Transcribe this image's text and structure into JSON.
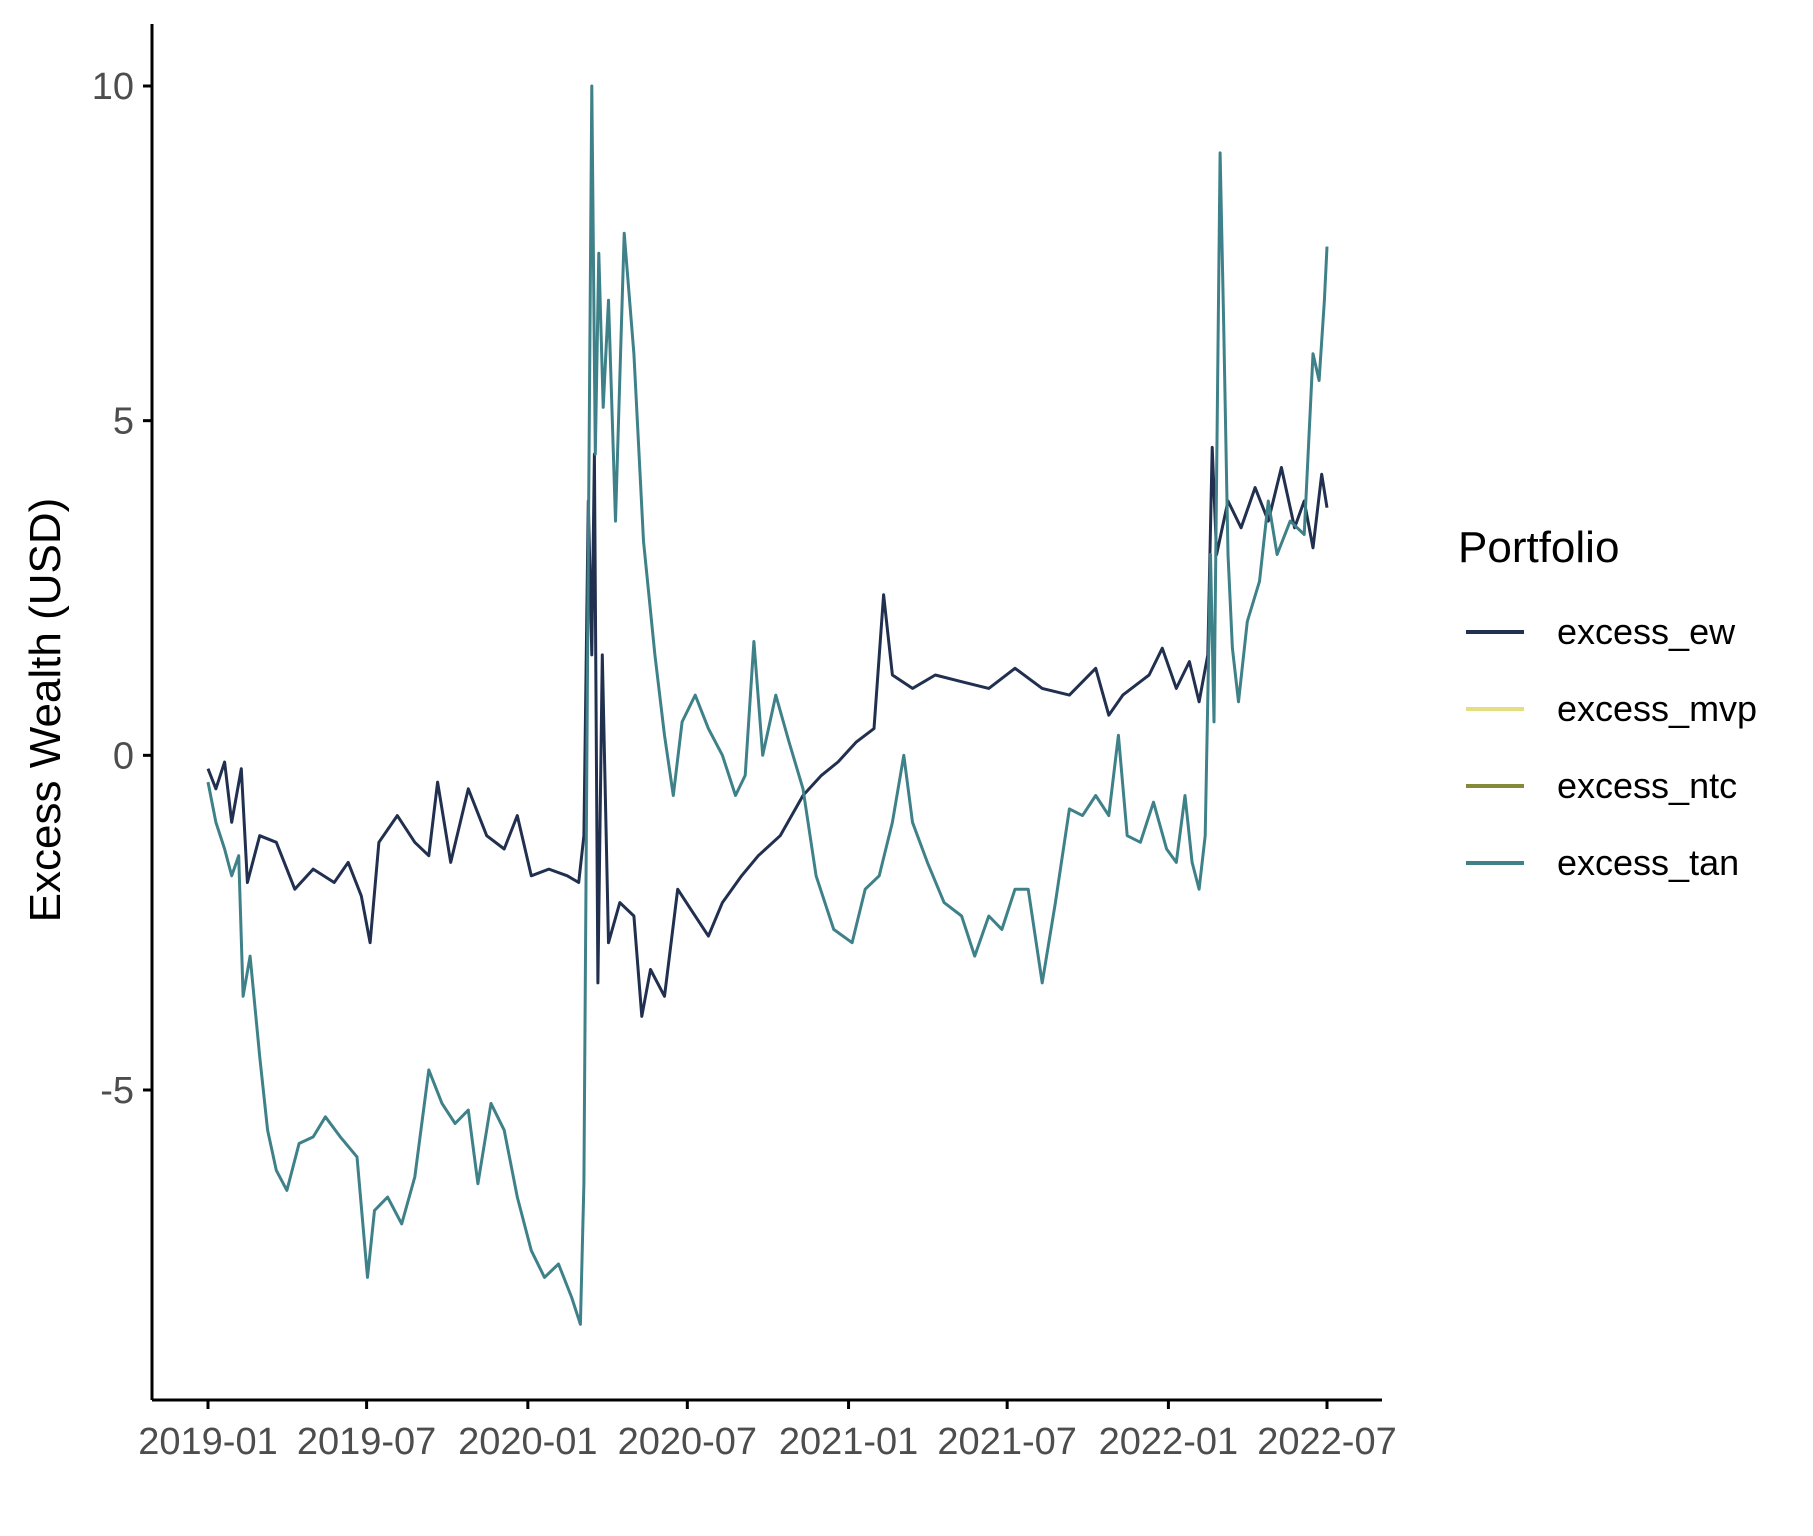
{
  "chart_data": {
    "type": "line",
    "title": "",
    "xlabel": "",
    "ylabel": "Excess Wealth (USD)",
    "x_type": "date",
    "xlim": [
      "2019-01-01",
      "2022-07-01"
    ],
    "ylim": [
      -9,
      11
    ],
    "x_ticks": [
      "2019-01",
      "2019-07",
      "2020-01",
      "2020-07",
      "2021-01",
      "2021-07",
      "2022-01",
      "2022-07"
    ],
    "y_ticks": [
      -5,
      0,
      5,
      10
    ],
    "y_tick_labels": [
      "-5",
      "0",
      "5",
      "10"
    ],
    "grid": false,
    "legend": {
      "title": "Portfolio",
      "placement": "right",
      "entries": [
        "excess_ew",
        "excess_mvp",
        "excess_ntc",
        "excess_tan"
      ]
    },
    "series": [
      {
        "name": "excess_ew",
        "color": "#21304f",
        "points": [
          [
            "2019-01-01",
            -0.2
          ],
          [
            "2019-01-10",
            -0.5
          ],
          [
            "2019-01-20",
            -0.1
          ],
          [
            "2019-01-28",
            -1.0
          ],
          [
            "2019-02-08",
            -0.2
          ],
          [
            "2019-02-15",
            -1.9
          ],
          [
            "2019-03-01",
            -1.2
          ],
          [
            "2019-03-20",
            -1.3
          ],
          [
            "2019-04-10",
            -2.0
          ],
          [
            "2019-05-01",
            -1.7
          ],
          [
            "2019-05-25",
            -1.9
          ],
          [
            "2019-06-10",
            -1.6
          ],
          [
            "2019-06-25",
            -2.1
          ],
          [
            "2019-07-05",
            -2.8
          ],
          [
            "2019-07-15",
            -1.3
          ],
          [
            "2019-08-05",
            -0.9
          ],
          [
            "2019-08-25",
            -1.3
          ],
          [
            "2019-09-10",
            -1.5
          ],
          [
            "2019-09-20",
            -0.4
          ],
          [
            "2019-10-05",
            -1.6
          ],
          [
            "2019-10-25",
            -0.5
          ],
          [
            "2019-11-15",
            -1.2
          ],
          [
            "2019-12-05",
            -1.4
          ],
          [
            "2019-12-20",
            -0.9
          ],
          [
            "2020-01-05",
            -1.8
          ],
          [
            "2020-01-25",
            -1.7
          ],
          [
            "2020-02-15",
            -1.8
          ],
          [
            "2020-02-28",
            -1.9
          ],
          [
            "2020-03-05",
            -1.2
          ],
          [
            "2020-03-10",
            3.8
          ],
          [
            "2020-03-14",
            1.5
          ],
          [
            "2020-03-17",
            4.5
          ],
          [
            "2020-03-21",
            -3.4
          ],
          [
            "2020-03-26",
            1.5
          ],
          [
            "2020-04-02",
            -2.8
          ],
          [
            "2020-04-15",
            -2.2
          ],
          [
            "2020-05-01",
            -2.4
          ],
          [
            "2020-05-10",
            -3.9
          ],
          [
            "2020-05-20",
            -3.2
          ],
          [
            "2020-06-05",
            -3.6
          ],
          [
            "2020-06-20",
            -2.0
          ],
          [
            "2020-07-05",
            -2.3
          ],
          [
            "2020-07-25",
            -2.7
          ],
          [
            "2020-08-10",
            -2.2
          ],
          [
            "2020-09-01",
            -1.8
          ],
          [
            "2020-09-20",
            -1.5
          ],
          [
            "2020-10-15",
            -1.2
          ],
          [
            "2020-11-10",
            -0.6
          ],
          [
            "2020-12-01",
            -0.3
          ],
          [
            "2020-12-20",
            -0.1
          ],
          [
            "2021-01-10",
            0.2
          ],
          [
            "2021-01-30",
            0.4
          ],
          [
            "2021-02-10",
            2.4
          ],
          [
            "2021-02-20",
            1.2
          ],
          [
            "2021-03-15",
            1.0
          ],
          [
            "2021-04-10",
            1.2
          ],
          [
            "2021-05-10",
            1.1
          ],
          [
            "2021-06-10",
            1.0
          ],
          [
            "2021-07-10",
            1.3
          ],
          [
            "2021-08-10",
            1.0
          ],
          [
            "2021-09-10",
            0.9
          ],
          [
            "2021-10-10",
            1.3
          ],
          [
            "2021-10-25",
            0.6
          ],
          [
            "2021-11-10",
            0.9
          ],
          [
            "2021-12-10",
            1.2
          ],
          [
            "2021-12-25",
            1.6
          ],
          [
            "2022-01-10",
            1.0
          ],
          [
            "2022-01-25",
            1.4
          ],
          [
            "2022-02-05",
            0.8
          ],
          [
            "2022-02-15",
            1.5
          ],
          [
            "2022-02-20",
            4.6
          ],
          [
            "2022-02-25",
            3.0
          ],
          [
            "2022-03-10",
            3.8
          ],
          [
            "2022-03-25",
            3.4
          ],
          [
            "2022-04-10",
            4.0
          ],
          [
            "2022-04-25",
            3.5
          ],
          [
            "2022-05-10",
            4.3
          ],
          [
            "2022-05-25",
            3.4
          ],
          [
            "2022-06-05",
            3.8
          ],
          [
            "2022-06-15",
            3.1
          ],
          [
            "2022-06-25",
            4.2
          ],
          [
            "2022-07-01",
            3.7
          ]
        ]
      },
      {
        "name": "excess_mvp",
        "color": "#e3de7f",
        "points": []
      },
      {
        "name": "excess_ntc",
        "color": "#858a3a",
        "points": []
      },
      {
        "name": "excess_tan",
        "color": "#3f8189",
        "points": [
          [
            "2019-01-01",
            -0.4
          ],
          [
            "2019-01-10",
            -1.0
          ],
          [
            "2019-01-20",
            -1.4
          ],
          [
            "2019-01-28",
            -1.8
          ],
          [
            "2019-02-05",
            -1.5
          ],
          [
            "2019-02-10",
            -3.6
          ],
          [
            "2019-02-18",
            -3.0
          ],
          [
            "2019-03-01",
            -4.5
          ],
          [
            "2019-03-10",
            -5.6
          ],
          [
            "2019-03-20",
            -6.2
          ],
          [
            "2019-04-01",
            -6.5
          ],
          [
            "2019-04-15",
            -5.8
          ],
          [
            "2019-05-01",
            -5.7
          ],
          [
            "2019-05-15",
            -5.4
          ],
          [
            "2019-06-01",
            -5.7
          ],
          [
            "2019-06-20",
            -6.0
          ],
          [
            "2019-07-02",
            -7.8
          ],
          [
            "2019-07-10",
            -6.8
          ],
          [
            "2019-07-25",
            -6.6
          ],
          [
            "2019-08-10",
            -7.0
          ],
          [
            "2019-08-25",
            -6.3
          ],
          [
            "2019-09-10",
            -4.7
          ],
          [
            "2019-09-25",
            -5.2
          ],
          [
            "2019-10-10",
            -5.5
          ],
          [
            "2019-10-25",
            -5.3
          ],
          [
            "2019-11-05",
            -6.4
          ],
          [
            "2019-11-20",
            -5.2
          ],
          [
            "2019-12-05",
            -5.6
          ],
          [
            "2019-12-20",
            -6.6
          ],
          [
            "2020-01-05",
            -7.4
          ],
          [
            "2020-01-20",
            -7.8
          ],
          [
            "2020-02-05",
            -7.6
          ],
          [
            "2020-02-20",
            -8.1
          ],
          [
            "2020-03-01",
            -8.5
          ],
          [
            "2020-03-05",
            -6.4
          ],
          [
            "2020-03-10",
            3.0
          ],
          [
            "2020-03-14",
            10.0
          ],
          [
            "2020-03-18",
            4.5
          ],
          [
            "2020-03-22",
            7.5
          ],
          [
            "2020-03-27",
            5.2
          ],
          [
            "2020-04-02",
            6.8
          ],
          [
            "2020-04-10",
            3.5
          ],
          [
            "2020-04-20",
            7.8
          ],
          [
            "2020-05-01",
            6.0
          ],
          [
            "2020-05-12",
            3.2
          ],
          [
            "2020-05-25",
            1.5
          ],
          [
            "2020-06-05",
            0.3
          ],
          [
            "2020-06-15",
            -0.6
          ],
          [
            "2020-06-25",
            0.5
          ],
          [
            "2020-07-10",
            0.9
          ],
          [
            "2020-07-25",
            0.4
          ],
          [
            "2020-08-10",
            0.0
          ],
          [
            "2020-08-25",
            -0.6
          ],
          [
            "2020-09-05",
            -0.3
          ],
          [
            "2020-09-15",
            1.7
          ],
          [
            "2020-09-25",
            0.0
          ],
          [
            "2020-10-10",
            0.9
          ],
          [
            "2020-10-25",
            0.2
          ],
          [
            "2020-11-10",
            -0.5
          ],
          [
            "2020-11-25",
            -1.8
          ],
          [
            "2020-12-15",
            -2.6
          ],
          [
            "2021-01-05",
            -2.8
          ],
          [
            "2021-01-20",
            -2.0
          ],
          [
            "2021-02-05",
            -1.8
          ],
          [
            "2021-02-20",
            -1.0
          ],
          [
            "2021-03-05",
            0.0
          ],
          [
            "2021-03-15",
            -1.0
          ],
          [
            "2021-04-01",
            -1.6
          ],
          [
            "2021-04-20",
            -2.2
          ],
          [
            "2021-05-10",
            -2.4
          ],
          [
            "2021-05-25",
            -3.0
          ],
          [
            "2021-06-10",
            -2.4
          ],
          [
            "2021-06-25",
            -2.6
          ],
          [
            "2021-07-10",
            -2.0
          ],
          [
            "2021-07-25",
            -2.0
          ],
          [
            "2021-08-10",
            -3.4
          ],
          [
            "2021-08-25",
            -2.2
          ],
          [
            "2021-09-10",
            -0.8
          ],
          [
            "2021-09-25",
            -0.9
          ],
          [
            "2021-10-10",
            -0.6
          ],
          [
            "2021-10-25",
            -0.9
          ],
          [
            "2021-11-05",
            0.3
          ],
          [
            "2021-11-15",
            -1.2
          ],
          [
            "2021-11-30",
            -1.3
          ],
          [
            "2021-12-15",
            -0.7
          ],
          [
            "2021-12-30",
            -1.4
          ],
          [
            "2022-01-10",
            -1.6
          ],
          [
            "2022-01-20",
            -0.6
          ],
          [
            "2022-01-28",
            -1.6
          ],
          [
            "2022-02-05",
            -2.0
          ],
          [
            "2022-02-12",
            -1.2
          ],
          [
            "2022-02-18",
            3.0
          ],
          [
            "2022-02-22",
            0.5
          ],
          [
            "2022-02-26",
            5.4
          ],
          [
            "2022-03-01",
            9.0
          ],
          [
            "2022-03-05",
            6.5
          ],
          [
            "2022-03-10",
            3.0
          ],
          [
            "2022-03-15",
            1.6
          ],
          [
            "2022-03-22",
            0.8
          ],
          [
            "2022-04-01",
            2.0
          ],
          [
            "2022-04-15",
            2.6
          ],
          [
            "2022-04-25",
            3.8
          ],
          [
            "2022-05-05",
            3.0
          ],
          [
            "2022-05-20",
            3.5
          ],
          [
            "2022-06-05",
            3.3
          ],
          [
            "2022-06-15",
            6.0
          ],
          [
            "2022-06-22",
            5.6
          ],
          [
            "2022-06-28",
            6.8
          ],
          [
            "2022-07-01",
            7.6
          ]
        ]
      }
    ]
  }
}
